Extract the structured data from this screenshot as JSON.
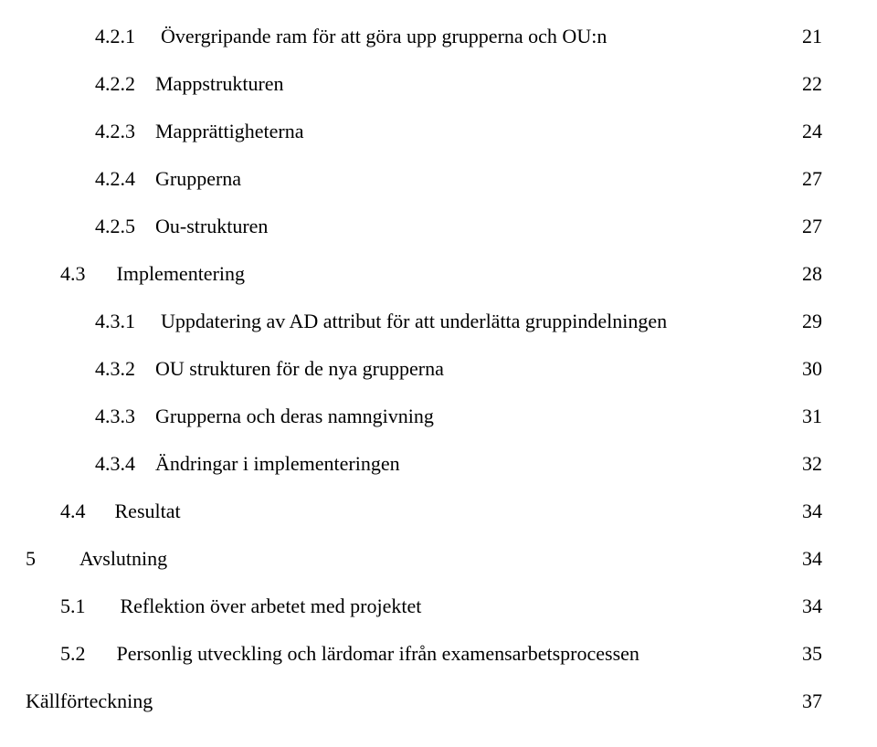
{
  "text_color": "#000000",
  "background_color": "#ffffff",
  "font_family": "Georgia, 'Times New Roman', serif",
  "entries": [
    {
      "indent": 76,
      "num": "4.2.1",
      "num_gap": 28,
      "title": "Övergripande ram för att göra upp grupperna och OU:n",
      "page": "21",
      "fontsize": 22,
      "line_height": 52,
      "leader_letter_spacing": 3
    },
    {
      "indent": 76,
      "num": "4.2.2",
      "num_gap": 22,
      "title": "Mappstrukturen",
      "page": "22",
      "fontsize": 22,
      "line_height": 52,
      "leader_letter_spacing": 3
    },
    {
      "indent": 76,
      "num": "4.2.3",
      "num_gap": 22,
      "title": "Mapprättigheterna",
      "page": "24",
      "fontsize": 22,
      "line_height": 52,
      "leader_letter_spacing": 3
    },
    {
      "indent": 76,
      "num": "4.2.4",
      "num_gap": 22,
      "title": "Grupperna",
      "page": "27",
      "fontsize": 22,
      "line_height": 52,
      "leader_letter_spacing": 3
    },
    {
      "indent": 76,
      "num": "4.2.5",
      "num_gap": 22,
      "title": "Ou-strukturen",
      "page": "27",
      "fontsize": 22,
      "line_height": 52,
      "leader_letter_spacing": 3
    },
    {
      "indent": 38,
      "num": "4.3",
      "num_gap": 34,
      "title": "Implementering",
      "page": "28",
      "fontsize": 22,
      "line_height": 52,
      "leader_letter_spacing": 3
    },
    {
      "indent": 76,
      "num": "4.3.1",
      "num_gap": 28,
      "title": "Uppdatering av AD attribut för att underlätta gruppindelningen",
      "page": "29",
      "fontsize": 22,
      "line_height": 52,
      "leader_letter_spacing": 3
    },
    {
      "indent": 76,
      "num": "4.3.2",
      "num_gap": 22,
      "title": "OU strukturen för de nya grupperna",
      "page": "30",
      "fontsize": 22,
      "line_height": 52,
      "leader_letter_spacing": 3
    },
    {
      "indent": 76,
      "num": "4.3.3",
      "num_gap": 22,
      "title": "Grupperna och deras namngivning",
      "page": "31",
      "fontsize": 22,
      "line_height": 52,
      "leader_letter_spacing": 3
    },
    {
      "indent": 76,
      "num": "4.3.4",
      "num_gap": 22,
      "title": "Ändringar i implementeringen",
      "page": "32",
      "fontsize": 22,
      "line_height": 52,
      "leader_letter_spacing": 3
    },
    {
      "indent": 38,
      "num": "4.4",
      "num_gap": 32,
      "title": "Resultat",
      "page": "34",
      "fontsize": 22,
      "line_height": 52,
      "leader_letter_spacing": 3
    },
    {
      "indent": 0,
      "num": "5",
      "num_gap": 48,
      "title": "Avslutning",
      "page": "34",
      "fontsize": 22,
      "line_height": 52,
      "leader_letter_spacing": 3
    },
    {
      "indent": 38,
      "num": "5.1",
      "num_gap": 38,
      "title": "Reflektion över arbetet med projektet",
      "page": "34",
      "fontsize": 22,
      "line_height": 52,
      "leader_letter_spacing": 3
    },
    {
      "indent": 38,
      "num": "5.2",
      "num_gap": 34,
      "title": "Personlig utveckling och lärdomar ifrån examensarbetsprocessen",
      "page": "35",
      "fontsize": 22,
      "line_height": 52,
      "leader_letter_spacing": 3
    },
    {
      "indent": 0,
      "num": "",
      "num_gap": 0,
      "title": "Källförteckning",
      "page": "37",
      "fontsize": 22,
      "line_height": 52,
      "leader_letter_spacing": 3
    }
  ]
}
